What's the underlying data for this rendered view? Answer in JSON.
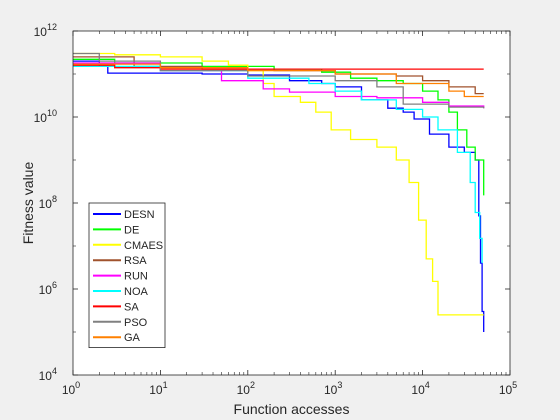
{
  "chart_data": {
    "type": "line",
    "title": "",
    "xlabel": "Function accesses",
    "ylabel": "Fitness value",
    "xscale": "log",
    "yscale": "log",
    "xlim": [
      1,
      100000
    ],
    "ylim": [
      10000,
      1000000000000
    ],
    "xticks": [
      {
        "value": 1,
        "base": "10",
        "exp": "0"
      },
      {
        "value": 10,
        "base": "10",
        "exp": "1"
      },
      {
        "value": 100,
        "base": "10",
        "exp": "2"
      },
      {
        "value": 1000,
        "base": "10",
        "exp": "3"
      },
      {
        "value": 10000,
        "base": "10",
        "exp": "4"
      },
      {
        "value": 100000,
        "base": "10",
        "exp": "5"
      }
    ],
    "yticks": [
      {
        "value": 10000,
        "base": "10",
        "exp": "4"
      },
      {
        "value": 1000000,
        "base": "10",
        "exp": "6"
      },
      {
        "value": 100000000,
        "base": "10",
        "exp": "8"
      },
      {
        "value": 10000000000,
        "base": "10",
        "exp": "10"
      },
      {
        "value": 1000000000000,
        "base": "10",
        "exp": "12"
      }
    ],
    "grid": false,
    "legend_position": "bottom-left",
    "series": [
      {
        "name": "DESN",
        "color": "#0000ff",
        "points": [
          [
            1,
            200000000000.0
          ],
          [
            2,
            150000000000.0
          ],
          [
            2.5,
            105000000000.0
          ],
          [
            30,
            100000000000.0
          ],
          [
            100,
            95000000000.0
          ],
          [
            300,
            70000000000.0
          ],
          [
            700,
            60000000000.0
          ],
          [
            1000,
            50000000000.0
          ],
          [
            2000,
            25000000000.0
          ],
          [
            4000,
            16000000000.0
          ],
          [
            6000,
            13000000000.0
          ],
          [
            8000,
            9000000000.0
          ],
          [
            12000,
            4000000000.0
          ],
          [
            20000,
            2000000000.0
          ],
          [
            30000,
            1500000000.0
          ],
          [
            40000,
            1000000000.0
          ],
          [
            44000,
            50000000.0
          ],
          [
            46000,
            4000000.0
          ],
          [
            48000,
            300000.0
          ],
          [
            50000,
            100000.0
          ]
        ]
      },
      {
        "name": "DE",
        "color": "#00ff00",
        "points": [
          [
            1,
            220000000000.0
          ],
          [
            3,
            180000000000.0
          ],
          [
            30,
            150000000000.0
          ],
          [
            200,
            130000000000.0
          ],
          [
            700,
            110000000000.0
          ],
          [
            1500,
            80000000000.0
          ],
          [
            3000,
            70000000000.0
          ],
          [
            6000,
            60000000000.0
          ],
          [
            10000,
            40000000000.0
          ],
          [
            15000,
            25000000000.0
          ],
          [
            20000,
            13000000000.0
          ],
          [
            25000,
            5000000000.0
          ],
          [
            32000,
            2000000000.0
          ],
          [
            40000,
            1000000000.0
          ],
          [
            50000,
            150000000.0
          ]
        ]
      },
      {
        "name": "CMAES",
        "color": "#ffff00",
        "points": [
          [
            1,
            300000000000.0
          ],
          [
            3,
            280000000000.0
          ],
          [
            10,
            250000000000.0
          ],
          [
            30,
            200000000000.0
          ],
          [
            60,
            160000000000.0
          ],
          [
            100,
            120000000000.0
          ],
          [
            150,
            60000000000.0
          ],
          [
            200,
            30000000000.0
          ],
          [
            400,
            22000000000.0
          ],
          [
            600,
            13000000000.0
          ],
          [
            900,
            5000000000.0
          ],
          [
            1500,
            3000000000.0
          ],
          [
            3000,
            2000000000.0
          ],
          [
            5000,
            1000000000.0
          ],
          [
            7000,
            300000000.0
          ],
          [
            9000,
            40000000.0
          ],
          [
            11000,
            5000000.0
          ],
          [
            13000,
            1500000.0
          ],
          [
            15000,
            250000.0
          ],
          [
            50000,
            250000.0
          ]
        ]
      },
      {
        "name": "RSA",
        "color": "#a0522d",
        "points": [
          [
            1,
            250000000000.0
          ],
          [
            5,
            150000000000.0
          ],
          [
            30,
            130000000000.0
          ],
          [
            200,
            120000000000.0
          ],
          [
            1000,
            100000000000.0
          ],
          [
            5000,
            90000000000.0
          ],
          [
            10000,
            70000000000.0
          ],
          [
            20000,
            50000000000.0
          ],
          [
            40000,
            35000000000.0
          ],
          [
            50000,
            35000000000.0
          ]
        ]
      },
      {
        "name": "RUN",
        "color": "#ff00ff",
        "points": [
          [
            1,
            180000000000.0
          ],
          [
            10,
            120000000000.0
          ],
          [
            50,
            70000000000.0
          ],
          [
            150,
            45000000000.0
          ],
          [
            300,
            38000000000.0
          ],
          [
            1000,
            30000000000.0
          ],
          [
            3000,
            28000000000.0
          ],
          [
            10000,
            22000000000.0
          ],
          [
            20000,
            18000000000.0
          ],
          [
            50000,
            16000000000.0
          ]
        ]
      },
      {
        "name": "NOA",
        "color": "#00ffff",
        "points": [
          [
            1,
            150000000000.0
          ],
          [
            10,
            120000000000.0
          ],
          [
            100,
            80000000000.0
          ],
          [
            500,
            60000000000.0
          ],
          [
            1000,
            40000000000.0
          ],
          [
            2000,
            25000000000.0
          ],
          [
            5000,
            15000000000.0
          ],
          [
            10000,
            10000000000.0
          ],
          [
            15000,
            5000000000.0
          ],
          [
            25000,
            1500000000.0
          ],
          [
            35000,
            300000000.0
          ],
          [
            40000,
            60000000.0
          ],
          [
            45000,
            15000000.0
          ],
          [
            48000,
            4000000.0
          ]
        ]
      },
      {
        "name": "SA",
        "color": "#ff0000",
        "points": [
          [
            1,
            160000000000.0
          ],
          [
            3,
            140000000000.0
          ],
          [
            10,
            130000000000.0
          ],
          [
            50000,
            130000000000.0
          ]
        ]
      },
      {
        "name": "PSO",
        "color": "#808080",
        "points": [
          [
            1,
            300000000000.0
          ],
          [
            2,
            200000000000.0
          ],
          [
            10,
            120000000000.0
          ],
          [
            100,
            90000000000.0
          ],
          [
            1000,
            70000000000.0
          ],
          [
            3000,
            50000000000.0
          ],
          [
            6000,
            20000000000.0
          ],
          [
            20000,
            17000000000.0
          ],
          [
            50000,
            16000000000.0
          ]
        ]
      },
      {
        "name": "GA",
        "color": "#ff8000",
        "points": [
          [
            1,
            170000000000.0
          ],
          [
            10,
            140000000000.0
          ],
          [
            100,
            120000000000.0
          ],
          [
            1000,
            100000000000.0
          ],
          [
            5000,
            60000000000.0
          ],
          [
            20000,
            40000000000.0
          ],
          [
            30000,
            30000000000.0
          ],
          [
            50000,
            30000000000.0
          ]
        ]
      }
    ]
  }
}
